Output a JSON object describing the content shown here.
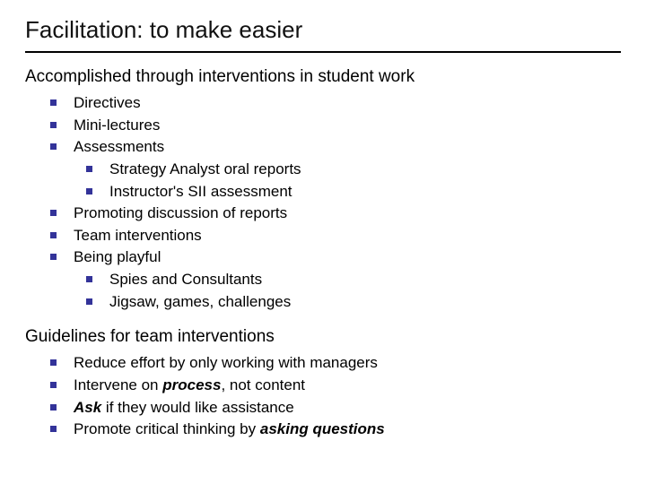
{
  "colors": {
    "text": "#000000",
    "bullet": "#333399",
    "background": "#ffffff",
    "rule": "#000000"
  },
  "typography": {
    "title_fontsize": 26,
    "heading_fontsize": 19,
    "body_fontsize": 17,
    "font_family": "Verdana"
  },
  "title": "Facilitation: to make easier",
  "section1": {
    "heading": "Accomplished through interventions in student work",
    "items": {
      "i0": "Directives",
      "i1": "Mini-lectures",
      "i2": "Assessments",
      "i2_sub": {
        "s0": "Strategy Analyst oral reports",
        "s1": "Instructor's SII assessment"
      },
      "i3": "Promoting discussion of reports",
      "i4": "Team interventions",
      "i5": "Being playful",
      "i5_sub": {
        "s0": "Spies and Consultants",
        "s1": "Jigsaw, games, challenges"
      }
    }
  },
  "section2": {
    "heading": "Guidelines for team interventions",
    "items": {
      "i0": "Reduce effort by only working with managers",
      "i1_a": "Intervene on ",
      "i1_b": "process",
      "i1_c": ", not content",
      "i2_a": "Ask",
      "i2_b": " if they would like assistance",
      "i3_a": "Promote critical thinking by ",
      "i3_b": "asking questions"
    }
  }
}
